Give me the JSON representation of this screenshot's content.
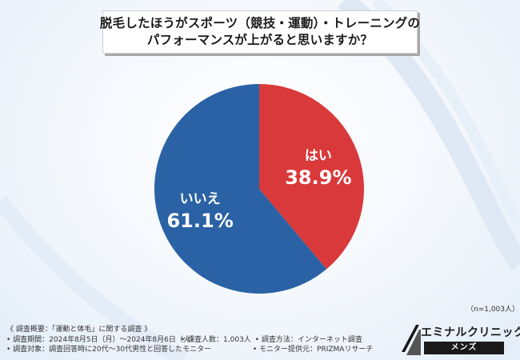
{
  "title": {
    "line1": "脱毛したほうがスポーツ（競技・運動）・トレーニングの",
    "line2": "パフォーマンスが上がると思いますか？"
  },
  "chart_data": {
    "type": "pie",
    "slices": [
      {
        "label": "はい",
        "value": 38.9,
        "display": "38.9%",
        "color": "#d9393a"
      },
      {
        "label": "いいえ",
        "value": 61.1,
        "display": "61.1%",
        "color": "#2a62a5"
      }
    ],
    "start": "12 o'clock",
    "direction": "clockwise"
  },
  "sample_size": "（n=1,003人）",
  "footer": {
    "heading": "《 調査概要：「運動と体毛」に関する調査 》",
    "period": "• 調査期間：2024年8月5日（月）～2024年8月6日（火）",
    "count": "• 調査人数：1,003人",
    "method": "• 調査方法：インターネット調査",
    "target": "• 調査対象：調査回答時に20代～30代男性と回答したモニター",
    "provider": "• モニター提供元：PRIZMAリサーチ"
  },
  "logo": {
    "name": "エミナルクリニック",
    "sub": "メンズ"
  }
}
